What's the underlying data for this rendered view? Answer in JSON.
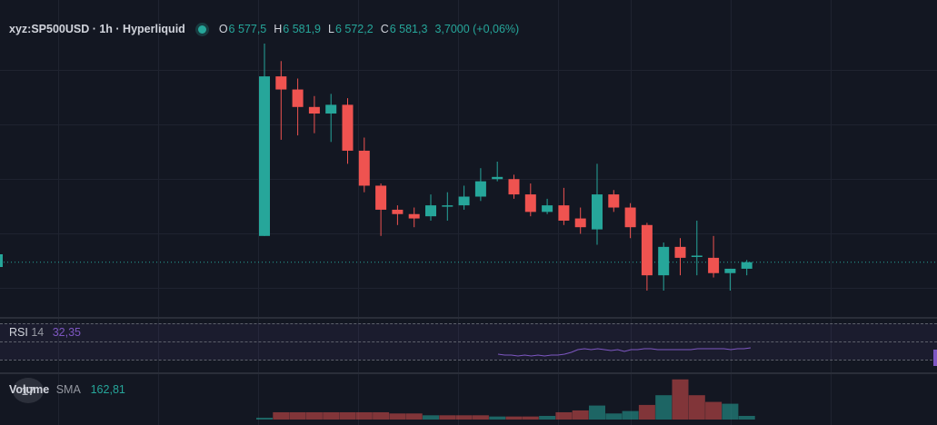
{
  "symbol": "xyz:SP500USD · 1h · Hyperliquid",
  "ohlc": {
    "o_label": "O",
    "o_value": "6 577,5",
    "h_label": "H",
    "h_value": "6 581,9",
    "l_label": "L",
    "l_value": "6 572,2",
    "c_label": "C",
    "c_value": "6 581,3",
    "change": "3,7000 (+0,06%)"
  },
  "rsi": {
    "name": "RSI",
    "length": "14",
    "value": "32,35"
  },
  "volume": {
    "name": "Volume",
    "ma_type": "SMA",
    "value": "162,81"
  },
  "logo_text": "17",
  "colors": {
    "up": "#26a69a",
    "down": "#ef5350",
    "rsi": "#7e57c2",
    "background": "#131722"
  },
  "chart_data": {
    "type": "candlestick",
    "price_candles": [
      {
        "o": 6593.0,
        "h": 6637.0,
        "l": 6593.0,
        "c": 6629.5
      },
      {
        "o": 6629.5,
        "h": 6633.0,
        "l": 6615.0,
        "c": 6626.5
      },
      {
        "o": 6626.5,
        "h": 6629.0,
        "l": 6616.0,
        "c": 6622.5
      },
      {
        "o": 6622.5,
        "h": 6625.0,
        "l": 6616.5,
        "c": 6621.0
      },
      {
        "o": 6621.0,
        "h": 6625.5,
        "l": 6614.5,
        "c": 6623.0
      },
      {
        "o": 6623.0,
        "h": 6624.5,
        "l": 6609.5,
        "c": 6612.5
      },
      {
        "o": 6612.5,
        "h": 6615.5,
        "l": 6603.0,
        "c": 6604.5
      },
      {
        "o": 6604.5,
        "h": 6605.0,
        "l": 6593.0,
        "c": 6599.0
      },
      {
        "o": 6599.0,
        "h": 6600.0,
        "l": 6595.5,
        "c": 6598.0
      },
      {
        "o": 6598.0,
        "h": 6599.5,
        "l": 6595.0,
        "c": 6597.0
      },
      {
        "o": 6597.5,
        "h": 6602.5,
        "l": 6596.5,
        "c": 6600.0
      },
      {
        "o": 6600.0,
        "h": 6603.0,
        "l": 6596.5,
        "c": 6600.0
      },
      {
        "o": 6600.0,
        "h": 6604.5,
        "l": 6599.0,
        "c": 6602.0
      },
      {
        "o": 6602.0,
        "h": 6608.5,
        "l": 6601.0,
        "c": 6605.5
      },
      {
        "o": 6606.0,
        "h": 6610.0,
        "l": 6605.5,
        "c": 6606.5
      },
      {
        "o": 6606.0,
        "h": 6607.0,
        "l": 6601.5,
        "c": 6602.5
      },
      {
        "o": 6602.5,
        "h": 6605.0,
        "l": 6597.5,
        "c": 6598.5
      },
      {
        "o": 6598.5,
        "h": 6601.5,
        "l": 6598.0,
        "c": 6600.0
      },
      {
        "o": 6600.0,
        "h": 6604.0,
        "l": 6595.5,
        "c": 6596.5
      },
      {
        "o": 6597.0,
        "h": 6599.5,
        "l": 6593.5,
        "c": 6595.0
      },
      {
        "o": 6594.5,
        "h": 6609.5,
        "l": 6591.0,
        "c": 6602.5
      },
      {
        "o": 6602.5,
        "h": 6603.5,
        "l": 6598.5,
        "c": 6599.5
      },
      {
        "o": 6599.5,
        "h": 6600.5,
        "l": 6592.5,
        "c": 6595.0
      },
      {
        "o": 6595.5,
        "h": 6596.0,
        "l": 6580.5,
        "c": 6584.0
      },
      {
        "o": 6584.0,
        "h": 6591.5,
        "l": 6580.5,
        "c": 6590.5
      },
      {
        "o": 6590.5,
        "h": 6592.5,
        "l": 6584.0,
        "c": 6588.0
      },
      {
        "o": 6588.5,
        "h": 6596.5,
        "l": 6584.0,
        "c": 6588.5
      },
      {
        "o": 6588.0,
        "h": 6593.0,
        "l": 6583.5,
        "c": 6584.5
      },
      {
        "o": 6584.5,
        "h": 6585.5,
        "l": 6580.5,
        "c": 6585.5
      },
      {
        "o": 6585.5,
        "h": 6587.5,
        "l": 6584.0,
        "c": 6587.0
      }
    ],
    "volume_bars": [
      {
        "v": 3,
        "up": true
      },
      {
        "v": 12,
        "up": false
      },
      {
        "v": 12,
        "up": false
      },
      {
        "v": 12,
        "up": false
      },
      {
        "v": 12,
        "up": false
      },
      {
        "v": 12,
        "up": false
      },
      {
        "v": 12,
        "up": false
      },
      {
        "v": 12,
        "up": false
      },
      {
        "v": 10,
        "up": false
      },
      {
        "v": 10,
        "up": false
      },
      {
        "v": 7,
        "up": true
      },
      {
        "v": 7,
        "up": false
      },
      {
        "v": 7,
        "up": false
      },
      {
        "v": 7,
        "up": false
      },
      {
        "v": 5,
        "up": true
      },
      {
        "v": 5,
        "up": false
      },
      {
        "v": 5,
        "up": false
      },
      {
        "v": 6,
        "up": true
      },
      {
        "v": 12,
        "up": false
      },
      {
        "v": 15,
        "up": false
      },
      {
        "v": 23,
        "up": true
      },
      {
        "v": 10,
        "up": true
      },
      {
        "v": 14,
        "up": true
      },
      {
        "v": 24,
        "up": false
      },
      {
        "v": 40,
        "up": true
      },
      {
        "v": 66,
        "up": false
      },
      {
        "v": 40,
        "up": false
      },
      {
        "v": 29,
        "up": false
      },
      {
        "v": 26,
        "up": true
      },
      {
        "v": 6,
        "up": true
      }
    ],
    "rsi_line": [
      28,
      27,
      27,
      26,
      27,
      26,
      27,
      26,
      27,
      27,
      28,
      30,
      33,
      34,
      33,
      34,
      33,
      32,
      33,
      31,
      33,
      33,
      34,
      34,
      33,
      33,
      33,
      33,
      33,
      33,
      34,
      34,
      34,
      34,
      34,
      33,
      34,
      34,
      35
    ]
  }
}
